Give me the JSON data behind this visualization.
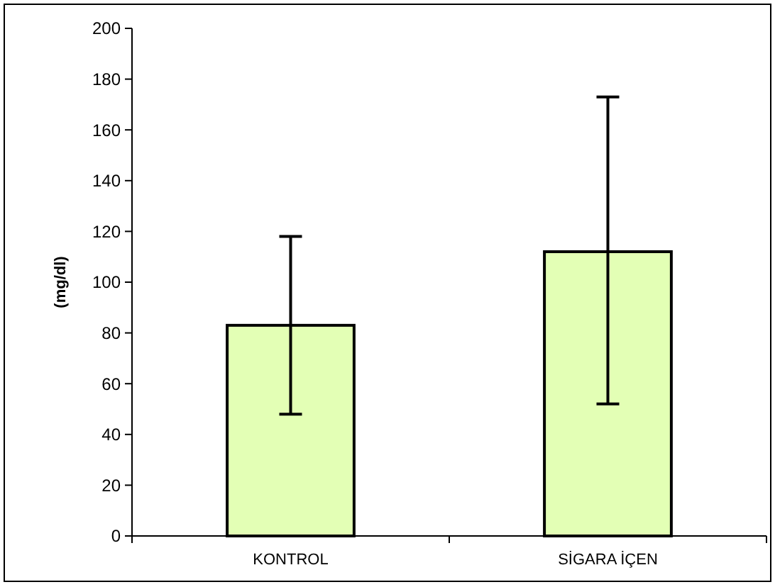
{
  "chart_data": {
    "type": "bar",
    "ylabel": "(mg/dl)",
    "categories": [
      "KONTROL",
      "SİGARA İÇEN"
    ],
    "values": [
      83,
      112
    ],
    "errors": [
      [
        48,
        118
      ],
      [
        52,
        173
      ]
    ],
    "color": "#e3ffb5",
    "ylim": [
      0,
      200
    ],
    "yticks": [
      0,
      20,
      40,
      60,
      80,
      100,
      120,
      140,
      160,
      180,
      200
    ],
    "grid": false
  }
}
